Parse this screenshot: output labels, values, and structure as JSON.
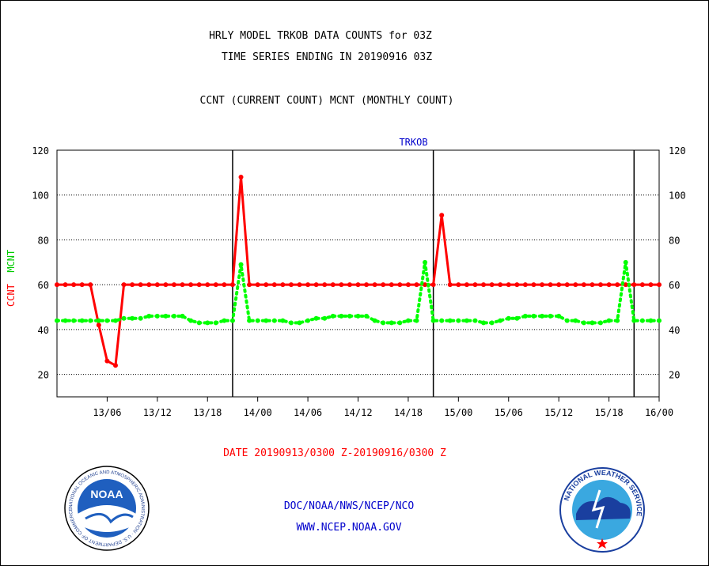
{
  "titles": {
    "line1": "HRLY MODEL TRKOB DATA COUNTS for 03Z",
    "line2": "TIME SERIES ENDING IN 20190916 03Z",
    "subtitle": "CCNT (CURRENT COUNT) MCNT (MONTHLY COUNT)"
  },
  "footer": {
    "date_range": "DATE 20190913/0300 Z-20190916/0300 Z",
    "credit1": "DOC/NOAA/NWS/NCEP/NCO",
    "credit2": "WWW.NCEP.NOAA.GOV"
  },
  "logos": {
    "noaa_text": "NOAA",
    "noaa_ring_text": "NATIONAL OCEANIC AND ATMOSPHERIC ADMINISTRATION · U.S. DEPARTMENT OF COMMERCE ·",
    "nws_ring_text": "NATIONAL WEATHER SERVICE"
  },
  "colors": {
    "ccnt": "#ff0000",
    "mcnt": "#00ff00",
    "panel_title": "#0000cc",
    "credit": "#0000cc",
    "date_range": "#ff0000"
  },
  "chart_data": {
    "type": "line",
    "title": "TRKOB",
    "ylabel_ccnt": "CCNT",
    "ylabel_mcnt": "MCNT",
    "ylim": [
      10,
      120
    ],
    "yticks": [
      20,
      40,
      60,
      80,
      100,
      120
    ],
    "grid": true,
    "xlim": [
      3,
      75
    ],
    "day_boundaries": [
      24,
      48,
      72
    ],
    "xticks": [
      {
        "x": 12,
        "label": "13/06"
      },
      {
        "x": 18,
        "label": "13/12"
      },
      {
        "x": 24,
        "label": "13/18"
      },
      {
        "x": 30,
        "label": "14/00"
      },
      {
        "x": 36,
        "label": "14/06"
      },
      {
        "x": 42,
        "label": "14/12"
      },
      {
        "x": 48,
        "label": "14/18"
      },
      {
        "x": 54,
        "label": "15/00"
      },
      {
        "x": 60,
        "label": "15/06"
      },
      {
        "x": 66,
        "label": "15/12"
      },
      {
        "x": 72,
        "label": "15/18"
      },
      {
        "x": 78,
        "label": "16/00"
      }
    ],
    "x_hours": [
      3,
      4,
      5,
      6,
      7,
      8,
      9,
      10,
      11,
      12,
      13,
      14,
      15,
      16,
      17,
      18,
      19,
      20,
      21,
      22,
      23,
      24,
      25,
      26,
      27,
      28,
      29,
      30,
      31,
      32,
      33,
      34,
      35,
      36,
      37,
      38,
      39,
      40,
      41,
      42,
      43,
      44,
      45,
      46,
      47,
      48,
      49,
      50,
      51,
      52,
      53,
      54,
      55,
      56,
      57,
      58,
      59,
      60,
      61,
      62,
      63,
      64,
      65,
      66,
      67,
      68,
      69,
      70,
      71,
      72,
      73,
      74,
      75
    ],
    "series": [
      {
        "name": "CCNT",
        "values": [
          60,
          60,
          60,
          60,
          60,
          42,
          26,
          24,
          60,
          60,
          60,
          60,
          60,
          60,
          60,
          60,
          60,
          60,
          60,
          60,
          60,
          60,
          108,
          60,
          60,
          60,
          60,
          60,
          60,
          60,
          60,
          60,
          60,
          60,
          60,
          60,
          60,
          60,
          60,
          60,
          60,
          60,
          60,
          60,
          60,
          60,
          91,
          60,
          60,
          60,
          60,
          60,
          60,
          60,
          60,
          60,
          60,
          60,
          60,
          60,
          60,
          60,
          60,
          60,
          60,
          60,
          60,
          60,
          60,
          60,
          60,
          60,
          60
        ]
      },
      {
        "name": "MCNT",
        "values": [
          44,
          44,
          44,
          44,
          44,
          44,
          44,
          44,
          45,
          45,
          45,
          46,
          46,
          46,
          46,
          46,
          44,
          43,
          43,
          43,
          44,
          44,
          69,
          44,
          44,
          44,
          44,
          44,
          43,
          43,
          44,
          45,
          45,
          46,
          46,
          46,
          46,
          46,
          44,
          43,
          43,
          43,
          44,
          44,
          70,
          44,
          44,
          44,
          44,
          44,
          44,
          43,
          43,
          44,
          45,
          45,
          46,
          46,
          46,
          46,
          46,
          44,
          44,
          43,
          43,
          43,
          44,
          44,
          70,
          44,
          44,
          44,
          44
        ]
      }
    ]
  }
}
